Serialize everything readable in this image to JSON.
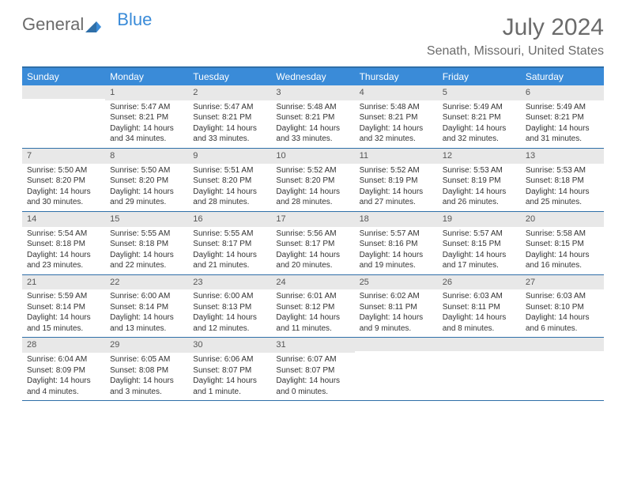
{
  "logo": {
    "text1": "General",
    "text2": "Blue"
  },
  "title": "July 2024",
  "location": "Senath, Missouri, United States",
  "colors": {
    "header_bg": "#3a8bd8",
    "border": "#2f6fa8",
    "daynum_bg": "#e8e8e8",
    "text_muted": "#6b6b6b"
  },
  "day_names": [
    "Sunday",
    "Monday",
    "Tuesday",
    "Wednesday",
    "Thursday",
    "Friday",
    "Saturday"
  ],
  "weeks": [
    [
      {
        "num": "",
        "lines": []
      },
      {
        "num": "1",
        "lines": [
          "Sunrise: 5:47 AM",
          "Sunset: 8:21 PM",
          "Daylight: 14 hours and 34 minutes."
        ]
      },
      {
        "num": "2",
        "lines": [
          "Sunrise: 5:47 AM",
          "Sunset: 8:21 PM",
          "Daylight: 14 hours and 33 minutes."
        ]
      },
      {
        "num": "3",
        "lines": [
          "Sunrise: 5:48 AM",
          "Sunset: 8:21 PM",
          "Daylight: 14 hours and 33 minutes."
        ]
      },
      {
        "num": "4",
        "lines": [
          "Sunrise: 5:48 AM",
          "Sunset: 8:21 PM",
          "Daylight: 14 hours and 32 minutes."
        ]
      },
      {
        "num": "5",
        "lines": [
          "Sunrise: 5:49 AM",
          "Sunset: 8:21 PM",
          "Daylight: 14 hours and 32 minutes."
        ]
      },
      {
        "num": "6",
        "lines": [
          "Sunrise: 5:49 AM",
          "Sunset: 8:21 PM",
          "Daylight: 14 hours and 31 minutes."
        ]
      }
    ],
    [
      {
        "num": "7",
        "lines": [
          "Sunrise: 5:50 AM",
          "Sunset: 8:20 PM",
          "Daylight: 14 hours and 30 minutes."
        ]
      },
      {
        "num": "8",
        "lines": [
          "Sunrise: 5:50 AM",
          "Sunset: 8:20 PM",
          "Daylight: 14 hours and 29 minutes."
        ]
      },
      {
        "num": "9",
        "lines": [
          "Sunrise: 5:51 AM",
          "Sunset: 8:20 PM",
          "Daylight: 14 hours and 28 minutes."
        ]
      },
      {
        "num": "10",
        "lines": [
          "Sunrise: 5:52 AM",
          "Sunset: 8:20 PM",
          "Daylight: 14 hours and 28 minutes."
        ]
      },
      {
        "num": "11",
        "lines": [
          "Sunrise: 5:52 AM",
          "Sunset: 8:19 PM",
          "Daylight: 14 hours and 27 minutes."
        ]
      },
      {
        "num": "12",
        "lines": [
          "Sunrise: 5:53 AM",
          "Sunset: 8:19 PM",
          "Daylight: 14 hours and 26 minutes."
        ]
      },
      {
        "num": "13",
        "lines": [
          "Sunrise: 5:53 AM",
          "Sunset: 8:18 PM",
          "Daylight: 14 hours and 25 minutes."
        ]
      }
    ],
    [
      {
        "num": "14",
        "lines": [
          "Sunrise: 5:54 AM",
          "Sunset: 8:18 PM",
          "Daylight: 14 hours and 23 minutes."
        ]
      },
      {
        "num": "15",
        "lines": [
          "Sunrise: 5:55 AM",
          "Sunset: 8:18 PM",
          "Daylight: 14 hours and 22 minutes."
        ]
      },
      {
        "num": "16",
        "lines": [
          "Sunrise: 5:55 AM",
          "Sunset: 8:17 PM",
          "Daylight: 14 hours and 21 minutes."
        ]
      },
      {
        "num": "17",
        "lines": [
          "Sunrise: 5:56 AM",
          "Sunset: 8:17 PM",
          "Daylight: 14 hours and 20 minutes."
        ]
      },
      {
        "num": "18",
        "lines": [
          "Sunrise: 5:57 AM",
          "Sunset: 8:16 PM",
          "Daylight: 14 hours and 19 minutes."
        ]
      },
      {
        "num": "19",
        "lines": [
          "Sunrise: 5:57 AM",
          "Sunset: 8:15 PM",
          "Daylight: 14 hours and 17 minutes."
        ]
      },
      {
        "num": "20",
        "lines": [
          "Sunrise: 5:58 AM",
          "Sunset: 8:15 PM",
          "Daylight: 14 hours and 16 minutes."
        ]
      }
    ],
    [
      {
        "num": "21",
        "lines": [
          "Sunrise: 5:59 AM",
          "Sunset: 8:14 PM",
          "Daylight: 14 hours and 15 minutes."
        ]
      },
      {
        "num": "22",
        "lines": [
          "Sunrise: 6:00 AM",
          "Sunset: 8:14 PM",
          "Daylight: 14 hours and 13 minutes."
        ]
      },
      {
        "num": "23",
        "lines": [
          "Sunrise: 6:00 AM",
          "Sunset: 8:13 PM",
          "Daylight: 14 hours and 12 minutes."
        ]
      },
      {
        "num": "24",
        "lines": [
          "Sunrise: 6:01 AM",
          "Sunset: 8:12 PM",
          "Daylight: 14 hours and 11 minutes."
        ]
      },
      {
        "num": "25",
        "lines": [
          "Sunrise: 6:02 AM",
          "Sunset: 8:11 PM",
          "Daylight: 14 hours and 9 minutes."
        ]
      },
      {
        "num": "26",
        "lines": [
          "Sunrise: 6:03 AM",
          "Sunset: 8:11 PM",
          "Daylight: 14 hours and 8 minutes."
        ]
      },
      {
        "num": "27",
        "lines": [
          "Sunrise: 6:03 AM",
          "Sunset: 8:10 PM",
          "Daylight: 14 hours and 6 minutes."
        ]
      }
    ],
    [
      {
        "num": "28",
        "lines": [
          "Sunrise: 6:04 AM",
          "Sunset: 8:09 PM",
          "Daylight: 14 hours and 4 minutes."
        ]
      },
      {
        "num": "29",
        "lines": [
          "Sunrise: 6:05 AM",
          "Sunset: 8:08 PM",
          "Daylight: 14 hours and 3 minutes."
        ]
      },
      {
        "num": "30",
        "lines": [
          "Sunrise: 6:06 AM",
          "Sunset: 8:07 PM",
          "Daylight: 14 hours and 1 minute."
        ]
      },
      {
        "num": "31",
        "lines": [
          "Sunrise: 6:07 AM",
          "Sunset: 8:07 PM",
          "Daylight: 14 hours and 0 minutes."
        ]
      },
      {
        "num": "",
        "lines": []
      },
      {
        "num": "",
        "lines": []
      },
      {
        "num": "",
        "lines": []
      }
    ]
  ]
}
